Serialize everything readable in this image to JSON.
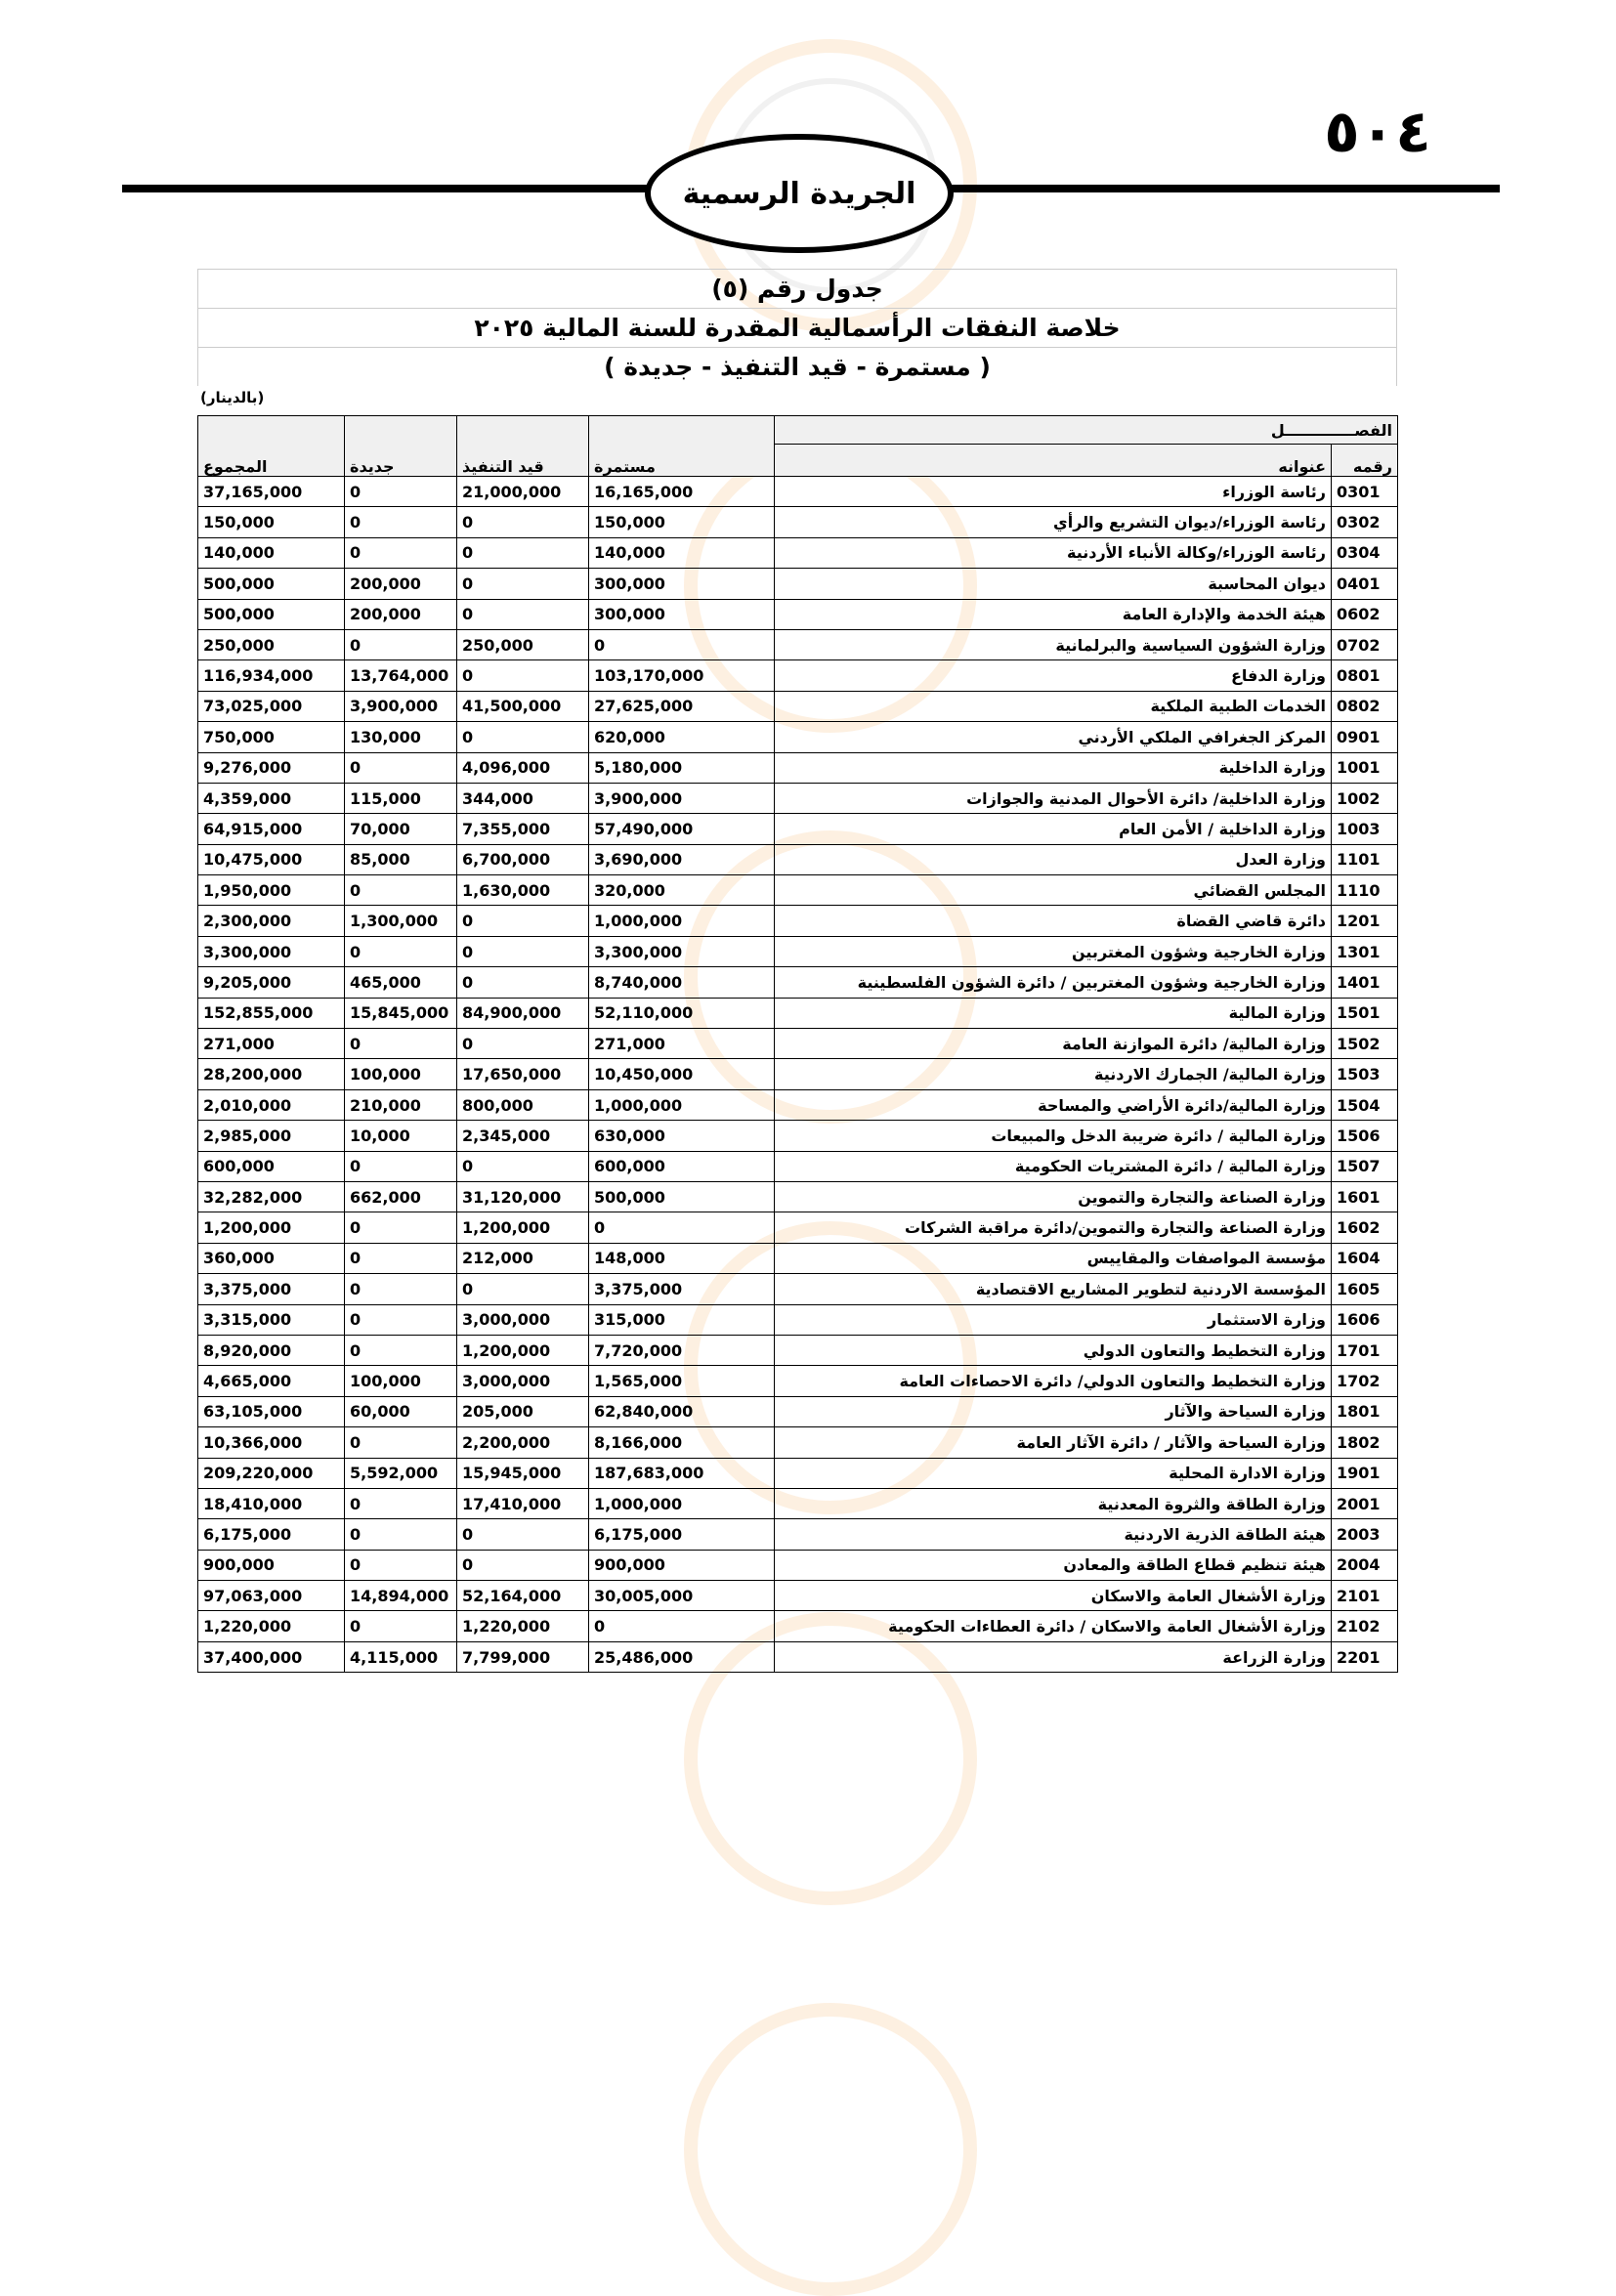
{
  "header": {
    "page_number": "٥٠٤",
    "gazette_title": "الجريدة الرسمية"
  },
  "table_title": {
    "line1": "جدول رقم (٥)",
    "line2": "خلاصة النفقات الرأسمالية المقدرة للسنة المالية ٢٠٢٥",
    "line3": "( مستمرة - قيد التنفيذ - جديدة )",
    "unit": "(بالدينار)"
  },
  "columns": {
    "chapter": "الفصـــــــــــــل",
    "code": "رقمه",
    "title": "عنوانه",
    "ongoing": "مستمرة",
    "in_progress": "قيد التنفيذ",
    "new": "جديدة",
    "total": "المجموع"
  },
  "rows": [
    {
      "code": "0301",
      "name": "رئاسة الوزراء",
      "ongoing": "16,165,000",
      "in_progress": "21,000,000",
      "new": "0",
      "total": "37,165,000"
    },
    {
      "code": "0302",
      "name": "رئاسة الوزراء/ديوان التشريع والرأي",
      "ongoing": "150,000",
      "in_progress": "0",
      "new": "0",
      "total": "150,000"
    },
    {
      "code": "0304",
      "name": "رئاسة الوزراء/وكالة الأنباء الأردنية",
      "ongoing": "140,000",
      "in_progress": "0",
      "new": "0",
      "total": "140,000"
    },
    {
      "code": "0401",
      "name": "ديوان المحاسبة",
      "ongoing": "300,000",
      "in_progress": "0",
      "new": "200,000",
      "total": "500,000"
    },
    {
      "code": "0602",
      "name": "هيئة الخدمة والإدارة العامة",
      "ongoing": "300,000",
      "in_progress": "0",
      "new": "200,000",
      "total": "500,000"
    },
    {
      "code": "0702",
      "name": "وزارة الشؤون السياسية والبرلمانية",
      "ongoing": "0",
      "in_progress": "250,000",
      "new": "0",
      "total": "250,000"
    },
    {
      "code": "0801",
      "name": "وزارة الدفاع",
      "ongoing": "103,170,000",
      "in_progress": "0",
      "new": "13,764,000",
      "total": "116,934,000"
    },
    {
      "code": "0802",
      "name": "الخدمات الطبية الملكية",
      "ongoing": "27,625,000",
      "in_progress": "41,500,000",
      "new": "3,900,000",
      "total": "73,025,000"
    },
    {
      "code": "0901",
      "name": "المركز الجغرافي الملكي الأردني",
      "ongoing": "620,000",
      "in_progress": "0",
      "new": "130,000",
      "total": "750,000"
    },
    {
      "code": "1001",
      "name": "وزارة الداخلية",
      "ongoing": "5,180,000",
      "in_progress": "4,096,000",
      "new": "0",
      "total": "9,276,000"
    },
    {
      "code": "1002",
      "name": "وزارة الداخلية/ دائرة الأحوال المدنية والجوازات",
      "ongoing": "3,900,000",
      "in_progress": "344,000",
      "new": "115,000",
      "total": "4,359,000"
    },
    {
      "code": "1003",
      "name": "وزارة الداخلية / الأمن العام",
      "ongoing": "57,490,000",
      "in_progress": "7,355,000",
      "new": "70,000",
      "total": "64,915,000"
    },
    {
      "code": "1101",
      "name": "وزارة العدل",
      "ongoing": "3,690,000",
      "in_progress": "6,700,000",
      "new": "85,000",
      "total": "10,475,000"
    },
    {
      "code": "1110",
      "name": "المجلس القضائي",
      "ongoing": "320,000",
      "in_progress": "1,630,000",
      "new": "0",
      "total": "1,950,000"
    },
    {
      "code": "1201",
      "name": "دائرة قاضي القضاة",
      "ongoing": "1,000,000",
      "in_progress": "0",
      "new": "1,300,000",
      "total": "2,300,000"
    },
    {
      "code": "1301",
      "name": "وزارة الخارجية وشؤون المغتربين",
      "ongoing": "3,300,000",
      "in_progress": "0",
      "new": "0",
      "total": "3,300,000"
    },
    {
      "code": "1401",
      "name": "وزارة الخارجية وشؤون المغتربين / دائرة الشؤون الفلسطينية",
      "ongoing": "8,740,000",
      "in_progress": "0",
      "new": "465,000",
      "total": "9,205,000"
    },
    {
      "code": "1501",
      "name": "وزارة المالية",
      "ongoing": "52,110,000",
      "in_progress": "84,900,000",
      "new": "15,845,000",
      "total": "152,855,000"
    },
    {
      "code": "1502",
      "name": "وزارة المالية/ دائرة الموازنة العامة",
      "ongoing": "271,000",
      "in_progress": "0",
      "new": "0",
      "total": "271,000"
    },
    {
      "code": "1503",
      "name": "وزارة المالية/ الجمارك الاردنية",
      "ongoing": "10,450,000",
      "in_progress": "17,650,000",
      "new": "100,000",
      "total": "28,200,000"
    },
    {
      "code": "1504",
      "name": "وزارة المالية/دائرة الأراضي والمساحة",
      "ongoing": "1,000,000",
      "in_progress": "800,000",
      "new": "210,000",
      "total": "2,010,000"
    },
    {
      "code": "1506",
      "name": "وزارة المالية / دائرة ضريبة الدخل والمبيعات",
      "ongoing": "630,000",
      "in_progress": "2,345,000",
      "new": "10,000",
      "total": "2,985,000"
    },
    {
      "code": "1507",
      "name": "وزارة المالية / دائرة المشتريات الحكومية",
      "ongoing": "600,000",
      "in_progress": "0",
      "new": "0",
      "total": "600,000"
    },
    {
      "code": "1601",
      "name": "وزارة الصناعة والتجارة والتموين",
      "ongoing": "500,000",
      "in_progress": "31,120,000",
      "new": "662,000",
      "total": "32,282,000"
    },
    {
      "code": "1602",
      "name": "وزارة الصناعة والتجارة والتموين/دائرة مراقبة الشركات",
      "ongoing": "0",
      "in_progress": "1,200,000",
      "new": "0",
      "total": "1,200,000"
    },
    {
      "code": "1604",
      "name": "مؤسسة المواصفات والمقاييس",
      "ongoing": "148,000",
      "in_progress": "212,000",
      "new": "0",
      "total": "360,000"
    },
    {
      "code": "1605",
      "name": "المؤسسة الاردنية لتطوير المشاريع الاقتصادية",
      "ongoing": "3,375,000",
      "in_progress": "0",
      "new": "0",
      "total": "3,375,000"
    },
    {
      "code": "1606",
      "name": "وزارة الاستثمار",
      "ongoing": "315,000",
      "in_progress": "3,000,000",
      "new": "0",
      "total": "3,315,000"
    },
    {
      "code": "1701",
      "name": "وزارة التخطيط والتعاون الدولي",
      "ongoing": "7,720,000",
      "in_progress": "1,200,000",
      "new": "0",
      "total": "8,920,000"
    },
    {
      "code": "1702",
      "name": "وزارة التخطيط والتعاون الدولي/ دائرة الاحصاءات العامة",
      "ongoing": "1,565,000",
      "in_progress": "3,000,000",
      "new": "100,000",
      "total": "4,665,000"
    },
    {
      "code": "1801",
      "name": "وزارة السياحة والآثار",
      "ongoing": "62,840,000",
      "in_progress": "205,000",
      "new": "60,000",
      "total": "63,105,000"
    },
    {
      "code": "1802",
      "name": "وزارة السياحة والآثار / دائرة الآثار العامة",
      "ongoing": "8,166,000",
      "in_progress": "2,200,000",
      "new": "0",
      "total": "10,366,000"
    },
    {
      "code": "1901",
      "name": "وزارة الادارة المحلية",
      "ongoing": "187,683,000",
      "in_progress": "15,945,000",
      "new": "5,592,000",
      "total": "209,220,000"
    },
    {
      "code": "2001",
      "name": "وزارة الطاقة والثروة المعدنية",
      "ongoing": "1,000,000",
      "in_progress": "17,410,000",
      "new": "0",
      "total": "18,410,000"
    },
    {
      "code": "2003",
      "name": "هيئة الطاقة الذرية الاردنية",
      "ongoing": "6,175,000",
      "in_progress": "0",
      "new": "0",
      "total": "6,175,000"
    },
    {
      "code": "2004",
      "name": "هيئة تنظيم قطاع الطاقة والمعادن",
      "ongoing": "900,000",
      "in_progress": "0",
      "new": "0",
      "total": "900,000"
    },
    {
      "code": "2101",
      "name": "وزارة الأشغال العامة والاسكان",
      "ongoing": "30,005,000",
      "in_progress": "52,164,000",
      "new": "14,894,000",
      "total": "97,063,000"
    },
    {
      "code": "2102",
      "name": "وزارة الأشغال العامة والاسكان / دائرة العطاءات الحكومية",
      "ongoing": "0",
      "in_progress": "1,220,000",
      "new": "0",
      "total": "1,220,000"
    },
    {
      "code": "2201",
      "name": "وزارة الزراعة",
      "ongoing": "25,486,000",
      "in_progress": "7,799,000",
      "new": "4,115,000",
      "total": "37,400,000"
    }
  ]
}
